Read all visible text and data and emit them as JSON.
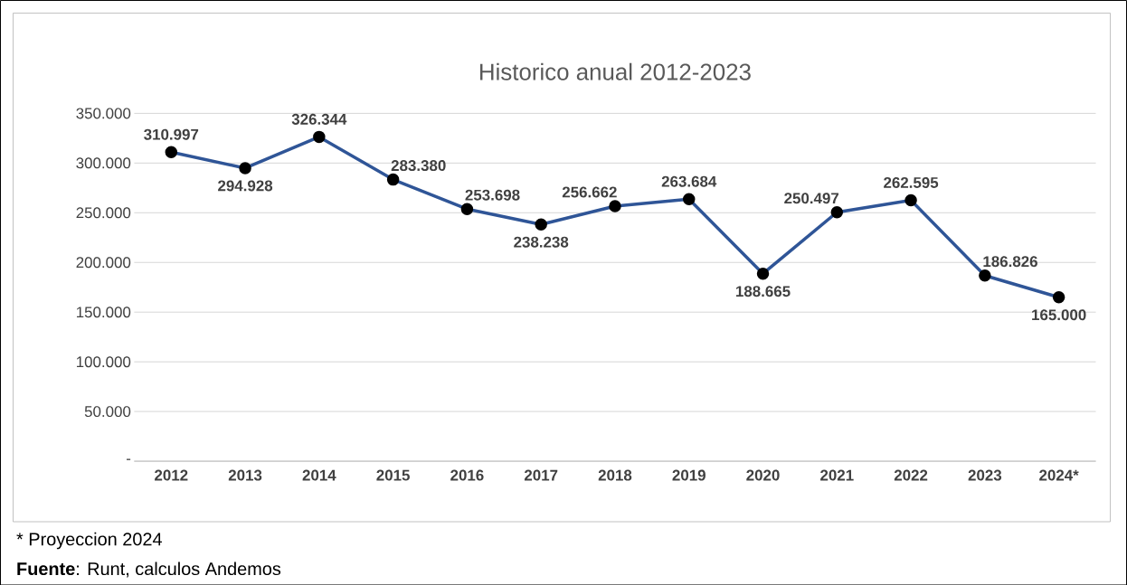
{
  "chart_data": {
    "type": "line",
    "title": "Historico anual 2012-2023",
    "categories": [
      "2012",
      "2013",
      "2014",
      "2015",
      "2016",
      "2017",
      "2018",
      "2019",
      "2020",
      "2021",
      "2022",
      "2023",
      "2024*"
    ],
    "series": [
      {
        "color": "#2f5597",
        "values": [
          310997,
          294928,
          326344,
          283380,
          253698,
          238238,
          256662,
          263684,
          188665,
          250497,
          262595,
          186826,
          165000
        ],
        "value_labels": [
          "310.997",
          "294.928",
          "326.344",
          "283.380",
          "253.698",
          "238.238",
          "256.662",
          "263.684",
          "188.665",
          "250.497",
          "262.595",
          "186.826",
          "165.000"
        ]
      }
    ],
    "ylim": [
      0,
      350000
    ],
    "yticks": [
      {
        "value": 0,
        "label": "-"
      },
      {
        "value": 50000,
        "label": "50.000"
      },
      {
        "value": 100000,
        "label": "100.000"
      },
      {
        "value": 150000,
        "label": "150.000"
      },
      {
        "value": 200000,
        "label": "200.000"
      },
      {
        "value": 250000,
        "label": "250.000"
      },
      {
        "value": 300000,
        "label": "300.000"
      },
      {
        "value": 350000,
        "label": "350.000"
      }
    ],
    "grid": "y",
    "marker": "circle",
    "line_style": "solid",
    "annotations": [
      "* Proyeccion 2024",
      "**Fuente**: Runt, calculos Andemos"
    ]
  }
}
